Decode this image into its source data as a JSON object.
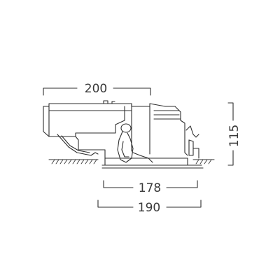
{
  "dimensions": {
    "top_width": "200",
    "trim_inner": "178",
    "trim_outer": "190",
    "height": "115"
  }
}
